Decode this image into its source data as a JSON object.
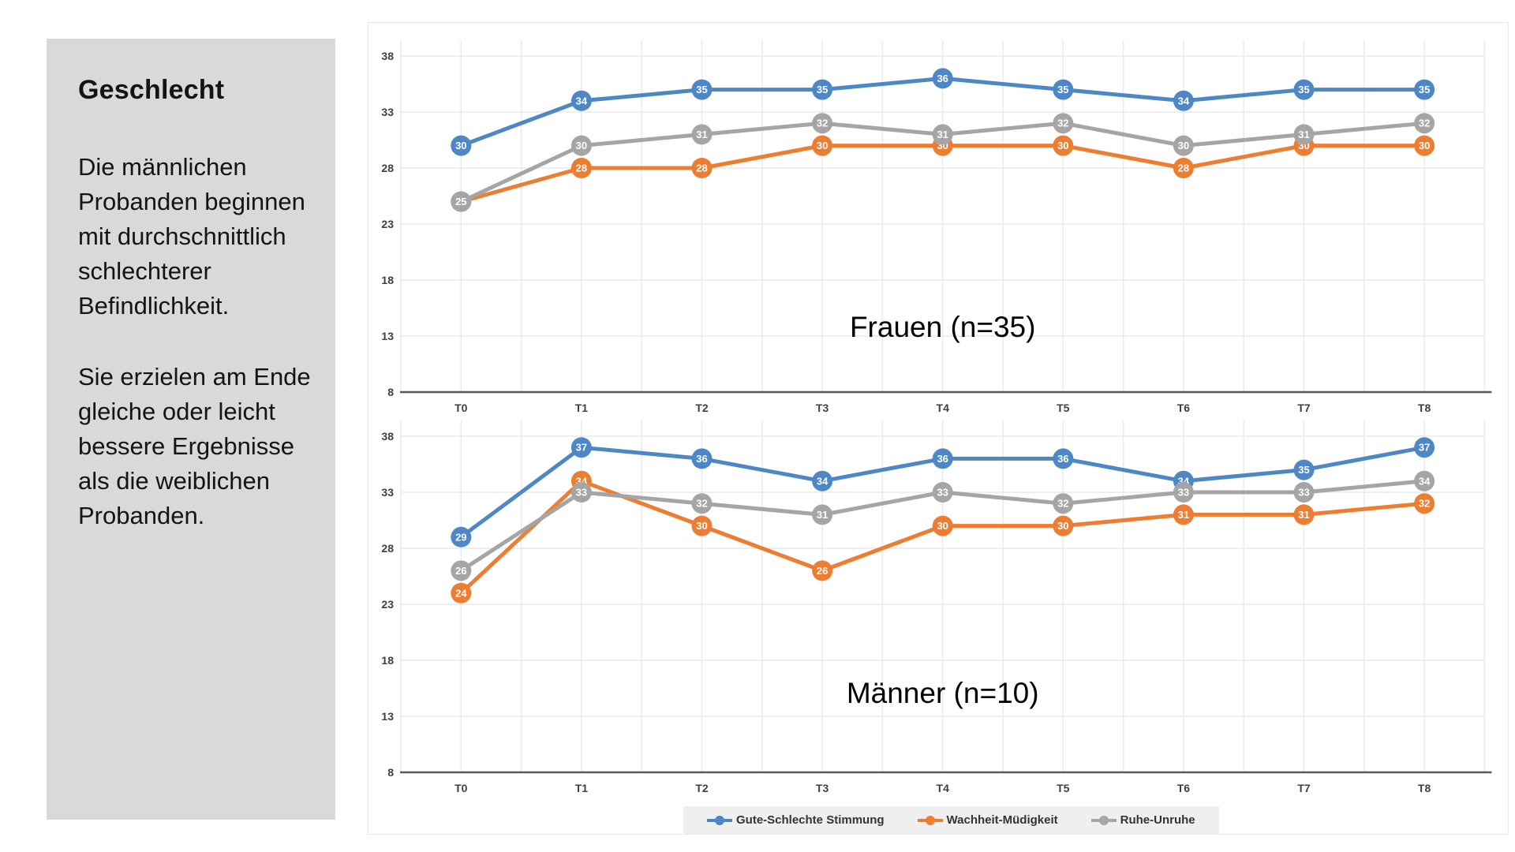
{
  "sidebar": {
    "title": "Geschlecht",
    "paragraphs": [
      "Die männlichen Probanden beginnen mit durchschnittlich schlechterer Befindlichkeit.",
      "Sie erzielen am Ende gleiche oder leicht bessere Ergebnisse als die weiblichen Probanden."
    ],
    "background_color": "#d9d9d9"
  },
  "colors": {
    "series_blue": "#4e87c5",
    "series_orange": "#ed7d31",
    "series_gray": "#a5a5a5",
    "gridline": "#e9e9e9",
    "axis_line": "#595959",
    "tick_text": "#3f3f3f",
    "legend_background": "#efefef"
  },
  "legend": {
    "position": "bottom-shared",
    "items": [
      {
        "label": "Gute-Schlechte Stimmung",
        "color": "#4e87c5"
      },
      {
        "label": "Wachheit-Müdigkeit",
        "color": "#ed7d31"
      },
      {
        "label": "Ruhe-Unruhe",
        "color": "#a5a5a5"
      }
    ]
  },
  "chart_data": [
    {
      "type": "line",
      "title": "Frauen (n=35)",
      "categories": [
        "T0",
        "T1",
        "T2",
        "T3",
        "T4",
        "T5",
        "T6",
        "T7",
        "T8"
      ],
      "series": [
        {
          "name": "Gute-Schlechte Stimmung",
          "color": "#4e87c5",
          "values": [
            30,
            34,
            35,
            35,
            36,
            35,
            34,
            35,
            35
          ]
        },
        {
          "name": "Wachheit-Müdigkeit",
          "color": "#ed7d31",
          "values": [
            25,
            28,
            28,
            30,
            30,
            30,
            28,
            30,
            30
          ]
        },
        {
          "name": "Ruhe-Unruhe",
          "color": "#a5a5a5",
          "values": [
            25,
            30,
            31,
            32,
            31,
            32,
            30,
            31,
            32
          ]
        }
      ],
      "xlabel": "",
      "ylabel": "",
      "ylim": [
        8,
        38
      ],
      "yticks": [
        8,
        13,
        18,
        23,
        28,
        33,
        38
      ],
      "grid": true,
      "data_labels": true
    },
    {
      "type": "line",
      "title": "Männer (n=10)",
      "categories": [
        "T0",
        "T1",
        "T2",
        "T3",
        "T4",
        "T5",
        "T6",
        "T7",
        "T8"
      ],
      "series": [
        {
          "name": "Gute-Schlechte Stimmung",
          "color": "#4e87c5",
          "values": [
            29,
            37,
            36,
            34,
            36,
            36,
            34,
            35,
            37
          ]
        },
        {
          "name": "Wachheit-Müdigkeit",
          "color": "#ed7d31",
          "values": [
            24,
            34,
            30,
            26,
            30,
            30,
            31,
            31,
            32
          ]
        },
        {
          "name": "Ruhe-Unruhe",
          "color": "#a5a5a5",
          "values": [
            26,
            33,
            32,
            31,
            33,
            32,
            33,
            33,
            34
          ]
        }
      ],
      "xlabel": "",
      "ylabel": "",
      "ylim": [
        8,
        38
      ],
      "yticks": [
        8,
        13,
        18,
        23,
        28,
        33,
        38
      ],
      "grid": true,
      "data_labels": true
    }
  ]
}
